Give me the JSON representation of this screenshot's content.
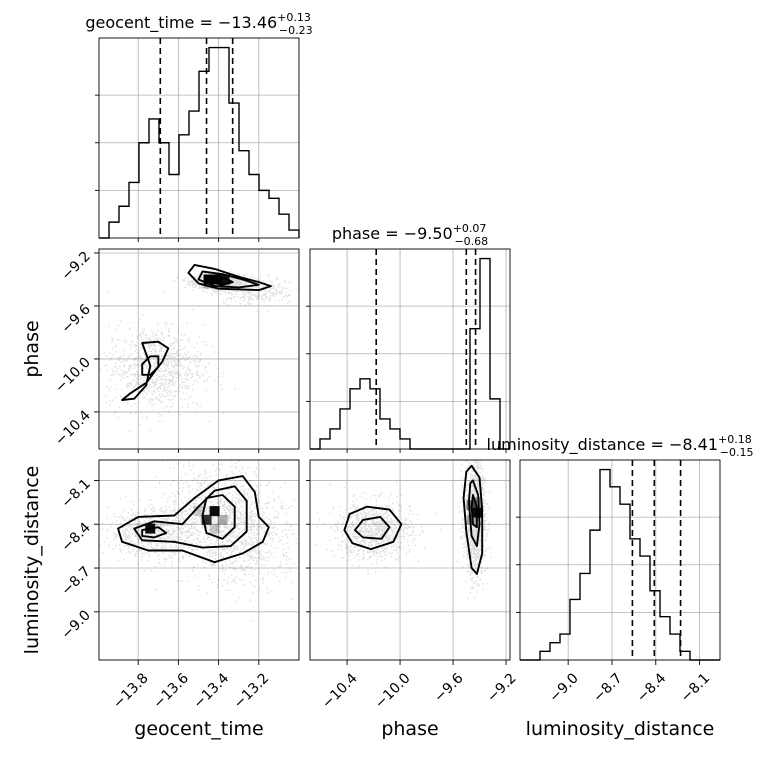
{
  "chart_data": {
    "type": "corner",
    "parameters": [
      "geocent_time",
      "phase",
      "luminosity_distance"
    ],
    "axis_labels": {
      "geocent_time": "geocent_time",
      "phase": "phase",
      "luminosity_distance": "luminosity_distance"
    },
    "titles": [
      {
        "param": "geocent_time",
        "prefix": "geocent_time = −13.46",
        "plus": "+0.13",
        "minus": "−0.23"
      },
      {
        "param": "phase",
        "prefix": "phase = −9.50",
        "plus": "+0.07",
        "minus": "−0.68"
      },
      {
        "param": "luminosity_distance",
        "prefix": "luminosity_distance = −8.41",
        "plus": "+0.18",
        "minus": "−0.15"
      }
    ],
    "ranges": {
      "geocent_time": [
        -13.995,
        -13.0
      ],
      "phase": [
        -10.68,
        -9.17
      ],
      "luminosity_distance": [
        -9.33,
        -7.96
      ]
    },
    "ticks": {
      "geocent_time": [
        -13.8,
        -13.6,
        -13.4,
        -13.2
      ],
      "phase": [
        -10.4,
        -10.0,
        -9.6,
        -9.2
      ],
      "luminosity_distance": [
        -9.0,
        -8.7,
        -8.4,
        -8.1
      ]
    },
    "tick_labels": {
      "geocent_time": [
        "−13.8",
        "−13.6",
        "−13.4",
        "−13.2"
      ],
      "phase": [
        "−10.4",
        "−10.0",
        "−9.6",
        "−9.2"
      ],
      "luminosity_distance": [
        "−9.0",
        "−8.7",
        "−8.4",
        "−8.1"
      ]
    },
    "quantiles": {
      "geocent_time": [
        -13.69,
        -13.46,
        -13.33
      ],
      "phase": [
        -10.18,
        -9.5,
        -9.43
      ],
      "luminosity_distance": [
        -8.56,
        -8.41,
        -8.23
      ]
    },
    "histograms": {
      "geocent_time": {
        "bins": 20,
        "counts": [
          0,
          2,
          4,
          7,
          12,
          15,
          12,
          8,
          13,
          16,
          21,
          24,
          24,
          17,
          11,
          8,
          6,
          5,
          3,
          1
        ]
      },
      "phase": {
        "bins": 20,
        "counts": [
          0,
          1,
          2,
          4,
          6,
          7,
          6,
          3,
          2,
          1,
          0,
          0,
          0,
          0,
          0,
          0,
          12,
          19,
          5,
          0
        ]
      },
      "luminosity_distance": {
        "bins": 20,
        "counts": [
          0,
          0,
          1,
          2,
          3,
          7,
          10,
          15,
          22,
          20,
          18,
          14,
          12,
          8,
          5,
          3,
          1,
          0,
          0,
          0
        ]
      }
    },
    "grid": true,
    "contours": [
      {
        "x": "geocent_time",
        "y": "phase",
        "levels": [
          [
            [
              -13.52,
              -9.29
            ],
            [
              -13.42,
              -9.32
            ],
            [
              -13.3,
              -9.38
            ],
            [
              -13.2,
              -9.42
            ],
            [
              -13.14,
              -9.45
            ],
            [
              -13.2,
              -9.48
            ],
            [
              -13.4,
              -9.47
            ],
            [
              -13.5,
              -9.43
            ],
            [
              -13.55,
              -9.35
            ]
          ],
          [
            [
              -13.48,
              -9.34
            ],
            [
              -13.38,
              -9.36
            ],
            [
              -13.28,
              -9.4
            ],
            [
              -13.2,
              -9.44
            ],
            [
              -13.3,
              -9.46
            ],
            [
              -13.42,
              -9.45
            ],
            [
              -13.5,
              -9.4
            ]
          ],
          [
            [
              -13.44,
              -9.38
            ],
            [
              -13.37,
              -9.39
            ],
            [
              -13.33,
              -9.42
            ],
            [
              -13.38,
              -9.44
            ],
            [
              -13.45,
              -9.42
            ]
          ],
          [
            [
              -13.78,
              -9.88
            ],
            [
              -13.7,
              -9.87
            ],
            [
              -13.65,
              -9.92
            ],
            [
              -13.68,
              -10.02
            ],
            [
              -13.76,
              -10.18
            ],
            [
              -13.84,
              -10.26
            ],
            [
              -13.88,
              -10.31
            ],
            [
              -13.82,
              -10.3
            ],
            [
              -13.76,
              -10.2
            ],
            [
              -13.74,
              -10.05
            ]
          ],
          [
            [
              -13.74,
              -9.98
            ],
            [
              -13.7,
              -9.98
            ],
            [
              -13.7,
              -10.06
            ],
            [
              -13.74,
              -10.12
            ],
            [
              -13.78,
              -10.12
            ],
            [
              -13.78,
              -10.04
            ]
          ]
        ]
      },
      {
        "x": "geocent_time",
        "y": "luminosity_distance",
        "levels": [
          [
            [
              -13.9,
              -8.43
            ],
            [
              -13.8,
              -8.35
            ],
            [
              -13.62,
              -8.34
            ],
            [
              -13.52,
              -8.22
            ],
            [
              -13.4,
              -8.1
            ],
            [
              -13.28,
              -8.07
            ],
            [
              -13.22,
              -8.18
            ],
            [
              -13.2,
              -8.35
            ],
            [
              -13.15,
              -8.42
            ],
            [
              -13.18,
              -8.52
            ],
            [
              -13.28,
              -8.6
            ],
            [
              -13.42,
              -8.66
            ],
            [
              -13.58,
              -8.58
            ],
            [
              -13.75,
              -8.58
            ],
            [
              -13.88,
              -8.52
            ]
          ],
          [
            [
              -13.82,
              -8.43
            ],
            [
              -13.72,
              -8.38
            ],
            [
              -13.58,
              -8.4
            ],
            [
              -13.5,
              -8.28
            ],
            [
              -13.42,
              -8.17
            ],
            [
              -13.32,
              -8.14
            ],
            [
              -13.26,
              -8.24
            ],
            [
              -13.26,
              -8.45
            ],
            [
              -13.34,
              -8.55
            ],
            [
              -13.48,
              -8.56
            ],
            [
              -13.62,
              -8.52
            ],
            [
              -13.78,
              -8.51
            ]
          ],
          [
            [
              -13.78,
              -8.44
            ],
            [
              -13.7,
              -8.42
            ],
            [
              -13.66,
              -8.46
            ],
            [
              -13.72,
              -8.49
            ],
            [
              -13.78,
              -8.48
            ]
          ],
          [
            [
              -13.46,
              -8.22
            ],
            [
              -13.38,
              -8.2
            ],
            [
              -13.32,
              -8.28
            ],
            [
              -13.32,
              -8.42
            ],
            [
              -13.38,
              -8.5
            ],
            [
              -13.46,
              -8.46
            ],
            [
              -13.48,
              -8.34
            ]
          ]
        ]
      },
      {
        "x": "phase",
        "y": "luminosity_distance",
        "levels": [
          [
            [
              -10.38,
              -8.33
            ],
            [
              -10.25,
              -8.28
            ],
            [
              -10.08,
              -8.3
            ],
            [
              -9.99,
              -8.4
            ],
            [
              -10.05,
              -8.52
            ],
            [
              -10.22,
              -8.57
            ],
            [
              -10.36,
              -8.53
            ],
            [
              -10.42,
              -8.44
            ]
          ],
          [
            [
              -10.28,
              -8.37
            ],
            [
              -10.15,
              -8.35
            ],
            [
              -10.08,
              -8.42
            ],
            [
              -10.14,
              -8.5
            ],
            [
              -10.28,
              -8.49
            ],
            [
              -10.34,
              -8.44
            ]
          ],
          [
            [
              -9.46,
              -8.0
            ],
            [
              -9.4,
              -8.08
            ],
            [
              -9.38,
              -8.3
            ],
            [
              -9.38,
              -8.6
            ],
            [
              -9.42,
              -8.74
            ],
            [
              -9.46,
              -8.7
            ],
            [
              -9.5,
              -8.45
            ],
            [
              -9.52,
              -8.22
            ],
            [
              -9.5,
              -8.04
            ]
          ],
          [
            [
              -9.45,
              -8.1
            ],
            [
              -9.41,
              -8.2
            ],
            [
              -9.4,
              -8.4
            ],
            [
              -9.42,
              -8.55
            ],
            [
              -9.46,
              -8.48
            ],
            [
              -9.48,
              -8.25
            ],
            [
              -9.47,
              -8.12
            ]
          ],
          [
            [
              -9.45,
              -8.2
            ],
            [
              -9.42,
              -8.28
            ],
            [
              -9.42,
              -8.42
            ],
            [
              -9.45,
              -8.4
            ],
            [
              -9.46,
              -8.28
            ]
          ]
        ]
      }
    ],
    "density_peaks": [
      {
        "x": "geocent_time",
        "y": "phase",
        "peaks": [
          [
            -13.4,
            -9.41,
            0.06,
            0.025,
            1400
          ],
          [
            -13.72,
            -10.06,
            0.12,
            0.16,
            900
          ],
          [
            -13.22,
            -9.48,
            0.1,
            0.05,
            300
          ]
        ]
      },
      {
        "x": "geocent_time",
        "y": "luminosity_distance",
        "peaks": [
          [
            -13.4,
            -8.36,
            0.14,
            0.18,
            1100
          ],
          [
            -13.74,
            -8.45,
            0.1,
            0.08,
            700
          ],
          [
            -13.25,
            -8.55,
            0.12,
            0.15,
            400
          ]
        ]
      },
      {
        "x": "phase",
        "y": "luminosity_distance",
        "peaks": [
          [
            -10.2,
            -8.44,
            0.14,
            0.1,
            900
          ],
          [
            -9.44,
            -8.35,
            0.04,
            0.2,
            1300
          ]
        ]
      }
    ],
    "dark_cells": [
      {
        "x": "geocent_time",
        "y": "phase",
        "cells": [
          [
            -13.45,
            -9.4,
            1.0
          ],
          [
            -13.41,
            -9.4,
            1.0
          ],
          [
            -13.37,
            -9.4,
            0.9
          ],
          [
            -13.45,
            -9.43,
            0.25
          ],
          [
            -13.37,
            -9.43,
            0.25
          ]
        ]
      },
      {
        "x": "geocent_time",
        "y": "luminosity_distance",
        "cells": [
          [
            -13.74,
            -8.43,
            0.95
          ],
          [
            -13.42,
            -8.31,
            0.95
          ],
          [
            -13.46,
            -8.37,
            0.8
          ],
          [
            -13.38,
            -8.37,
            0.3
          ],
          [
            -13.42,
            -8.43,
            0.2
          ],
          [
            -13.5,
            -8.31,
            0.2
          ]
        ]
      },
      {
        "x": "phase",
        "y": "luminosity_distance",
        "cells": [
          [
            -9.42,
            -8.32,
            0.95
          ],
          [
            -9.46,
            -8.27,
            0.5
          ],
          [
            -9.42,
            -8.25,
            0.35
          ],
          [
            -9.46,
            -8.37,
            0.3
          ]
        ]
      }
    ]
  }
}
